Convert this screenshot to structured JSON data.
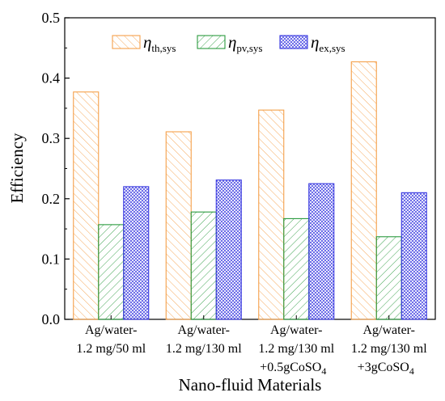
{
  "chart_data": {
    "type": "bar",
    "ylabel": "Efficiency",
    "xlabel": "Nano-fluid Materials",
    "ylim": [
      0,
      0.5
    ],
    "yticks": [
      "0.0",
      "0.1",
      "0.2",
      "0.3",
      "0.4",
      "0.5"
    ],
    "categories": [
      {
        "lines": [
          "Ag/water-",
          "1.2 mg/50 ml"
        ]
      },
      {
        "lines": [
          "Ag/water-",
          "1.2 mg/130 ml"
        ]
      },
      {
        "lines": [
          "Ag/water-",
          "1.2 mg/130 ml",
          "+0.5gCoSO",
          "4"
        ]
      },
      {
        "lines": [
          "Ag/water-",
          "1.2 mg/130 ml",
          "+3gCoSO",
          "4"
        ]
      }
    ],
    "series": [
      {
        "symbol": "η",
        "subscript": "th,sys",
        "color": "#f5a04a",
        "pattern": "diag",
        "values": [
          0.377,
          0.311,
          0.347,
          0.427
        ]
      },
      {
        "symbol": "η",
        "subscript": "pv,sys",
        "color": "#2a9a3e",
        "pattern": "backdiag",
        "values": [
          0.157,
          0.178,
          0.167,
          0.137
        ]
      },
      {
        "symbol": "η",
        "subscript": "ex,sys",
        "color": "#3a3ae0",
        "pattern": "grid",
        "values": [
          0.22,
          0.231,
          0.225,
          0.21
        ]
      }
    ],
    "legend_position": "top"
  }
}
